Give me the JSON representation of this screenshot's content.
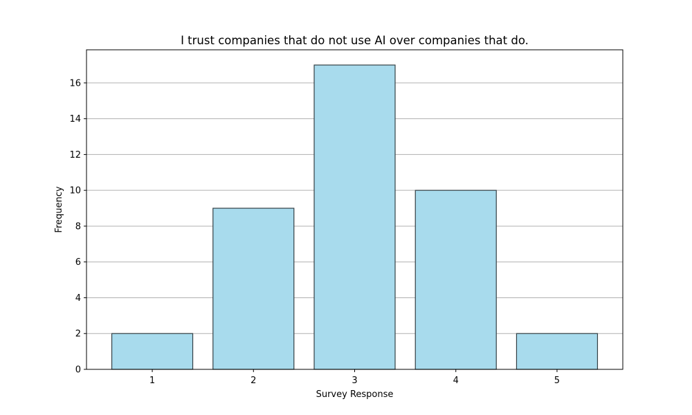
{
  "chart_data": {
    "type": "bar",
    "title": "I trust companies that do not use AI over companies that do.",
    "xlabel": "Survey Response",
    "ylabel": "Frequency",
    "categories": [
      "1",
      "2",
      "3",
      "4",
      "5"
    ],
    "values": [
      2,
      9,
      17,
      10,
      2
    ],
    "ylim": [
      0,
      17.85
    ],
    "yticks": [
      0,
      2,
      4,
      6,
      8,
      10,
      12,
      14,
      16
    ],
    "grid": "horizontal",
    "legend": "none",
    "colors": {
      "bar_fill": "#a8dbed",
      "bar_edge": "#333f44",
      "grid": "#b0b0b0",
      "axes": "#000000"
    }
  }
}
